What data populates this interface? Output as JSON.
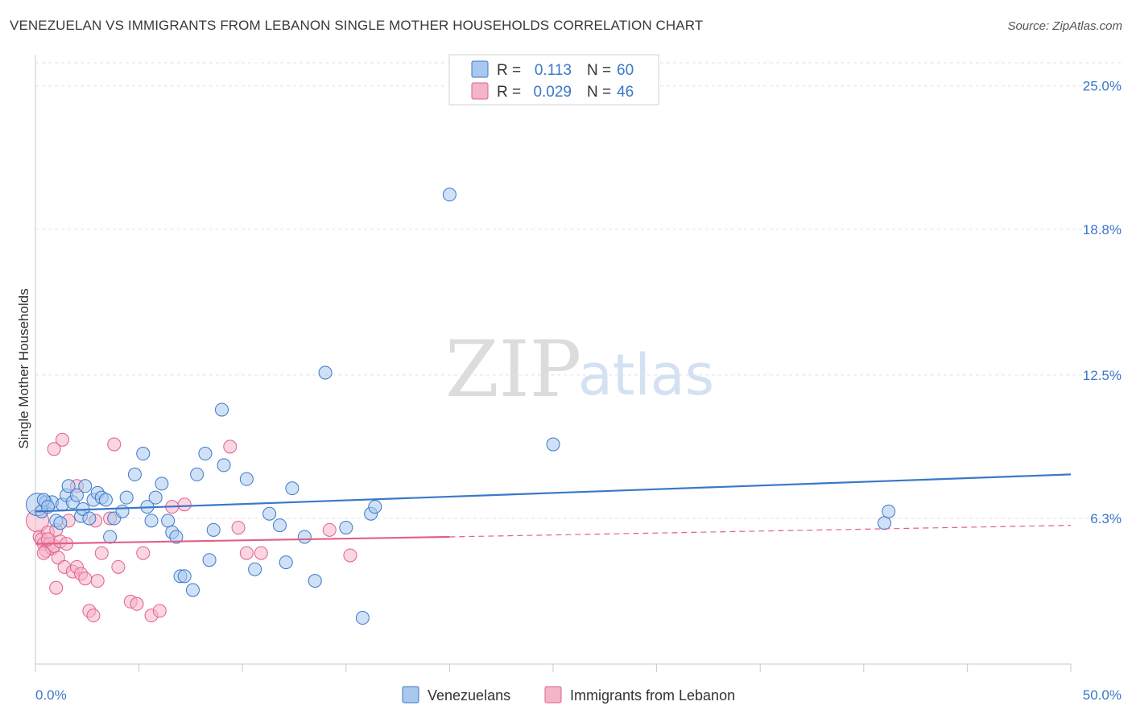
{
  "header": {
    "title": "VENEZUELAN VS IMMIGRANTS FROM LEBANON SINGLE MOTHER HOUSEHOLDS CORRELATION CHART",
    "source": "Source: ZipAtlas.com"
  },
  "watermark": {
    "zip": "ZIP",
    "atlas": "atlas"
  },
  "colors": {
    "blue": "#3a78c8",
    "blue_fill": "#a9c8ef",
    "pink": "#e0608a",
    "pink_fill": "#f4b5c9"
  },
  "legend": {
    "rows": [
      {
        "r_label": "R =",
        "r_value": "0.113",
        "n_label": "N =",
        "n_value": "60"
      },
      {
        "r_label": "R =",
        "r_value": "0.029",
        "n_label": "N =",
        "n_value": "46"
      }
    ]
  },
  "chart_data": {
    "type": "scatter",
    "title": "VENEZUELAN VS IMMIGRANTS FROM LEBANON SINGLE MOTHER HOUSEHOLDS CORRELATION CHART",
    "xlabel": "",
    "ylabel": "Single Mother Households",
    "xlim": [
      0,
      50
    ],
    "ylim": [
      0,
      26
    ],
    "x_tick_labels": [
      "0.0%",
      "50.0%"
    ],
    "y_ticks": [
      6.3,
      12.5,
      18.8,
      25.0
    ],
    "y_tick_labels": [
      "6.3%",
      "12.5%",
      "18.8%",
      "25.0%"
    ],
    "series": [
      {
        "name": "Venezuelans",
        "color": "#3a78c8",
        "points": [
          [
            0.1,
            6.9
          ],
          [
            0.3,
            6.6
          ],
          [
            0.5,
            7.0
          ],
          [
            0.8,
            7.0
          ],
          [
            1.0,
            6.2
          ],
          [
            1.2,
            6.1
          ],
          [
            1.3,
            6.9
          ],
          [
            1.5,
            7.3
          ],
          [
            1.6,
            7.7
          ],
          [
            1.8,
            7.0
          ],
          [
            2.0,
            7.3
          ],
          [
            2.2,
            6.4
          ],
          [
            2.3,
            6.7
          ],
          [
            2.4,
            7.7
          ],
          [
            2.6,
            6.3
          ],
          [
            2.8,
            7.1
          ],
          [
            3.0,
            7.4
          ],
          [
            3.2,
            7.2
          ],
          [
            3.4,
            7.1
          ],
          [
            3.6,
            5.5
          ],
          [
            3.8,
            6.3
          ],
          [
            4.2,
            6.6
          ],
          [
            4.4,
            7.2
          ],
          [
            4.8,
            8.2
          ],
          [
            5.2,
            9.1
          ],
          [
            5.4,
            6.8
          ],
          [
            5.6,
            6.2
          ],
          [
            5.8,
            7.2
          ],
          [
            6.1,
            7.8
          ],
          [
            6.4,
            6.2
          ],
          [
            6.6,
            5.7
          ],
          [
            6.8,
            5.5
          ],
          [
            7.0,
            3.8
          ],
          [
            7.2,
            3.8
          ],
          [
            7.6,
            3.2
          ],
          [
            7.8,
            8.2
          ],
          [
            8.2,
            9.1
          ],
          [
            8.4,
            4.5
          ],
          [
            8.6,
            5.8
          ],
          [
            9.0,
            11.0
          ],
          [
            9.1,
            8.6
          ],
          [
            10.2,
            8.0
          ],
          [
            10.6,
            4.1
          ],
          [
            11.3,
            6.5
          ],
          [
            11.8,
            6.0
          ],
          [
            12.1,
            4.4
          ],
          [
            12.4,
            7.6
          ],
          [
            13.0,
            5.5
          ],
          [
            13.5,
            3.6
          ],
          [
            14.0,
            12.6
          ],
          [
            15.0,
            5.9
          ],
          [
            15.8,
            2.0
          ],
          [
            16.2,
            6.5
          ],
          [
            16.4,
            6.8
          ],
          [
            20.0,
            20.3
          ],
          [
            25.0,
            9.5
          ],
          [
            41.0,
            6.1
          ],
          [
            41.2,
            6.6
          ],
          [
            0.4,
            7.1
          ],
          [
            0.6,
            6.8
          ]
        ]
      },
      {
        "name": "Immigrants from Lebanon",
        "color": "#e0608a",
        "points": [
          [
            0.1,
            6.2
          ],
          [
            0.2,
            5.5
          ],
          [
            0.3,
            5.4
          ],
          [
            0.4,
            5.2
          ],
          [
            0.5,
            4.9
          ],
          [
            0.6,
            5.7
          ],
          [
            0.7,
            5.2
          ],
          [
            0.8,
            5.0
          ],
          [
            0.9,
            5.1
          ],
          [
            1.0,
            5.8
          ],
          [
            1.1,
            4.6
          ],
          [
            1.2,
            5.3
          ],
          [
            1.4,
            4.2
          ],
          [
            1.5,
            5.2
          ],
          [
            1.6,
            6.2
          ],
          [
            1.8,
            4.0
          ],
          [
            2.0,
            4.2
          ],
          [
            2.2,
            3.9
          ],
          [
            2.4,
            3.7
          ],
          [
            2.6,
            2.3
          ],
          [
            2.8,
            2.1
          ],
          [
            3.0,
            3.6
          ],
          [
            3.2,
            4.8
          ],
          [
            3.6,
            6.3
          ],
          [
            4.0,
            4.2
          ],
          [
            4.6,
            2.7
          ],
          [
            4.9,
            2.6
          ],
          [
            5.2,
            4.8
          ],
          [
            5.6,
            2.1
          ],
          [
            6.0,
            2.3
          ],
          [
            6.6,
            6.8
          ],
          [
            7.2,
            6.9
          ],
          [
            9.4,
            9.4
          ],
          [
            9.8,
            5.9
          ],
          [
            10.2,
            4.8
          ],
          [
            10.9,
            4.8
          ],
          [
            14.2,
            5.8
          ],
          [
            15.2,
            4.7
          ],
          [
            0.9,
            9.3
          ],
          [
            1.3,
            9.7
          ],
          [
            3.8,
            9.5
          ],
          [
            2.0,
            7.7
          ],
          [
            0.4,
            4.8
          ],
          [
            0.6,
            5.4
          ],
          [
            1.0,
            3.3
          ],
          [
            2.9,
            6.2
          ]
        ]
      }
    ],
    "trend_lines": [
      {
        "series": "Venezuelans",
        "start": [
          0,
          6.6
        ],
        "end": [
          50,
          8.2
        ],
        "style": "solid"
      },
      {
        "series": "Immigrants from Lebanon",
        "start": [
          0,
          5.2
        ],
        "end": [
          20,
          5.5
        ],
        "style": "solid"
      },
      {
        "series": "Immigrants from Lebanon",
        "start": [
          20,
          5.5
        ],
        "end": [
          50,
          6.0
        ],
        "style": "dashed"
      }
    ],
    "legend_position": "top-center",
    "grid": true
  }
}
